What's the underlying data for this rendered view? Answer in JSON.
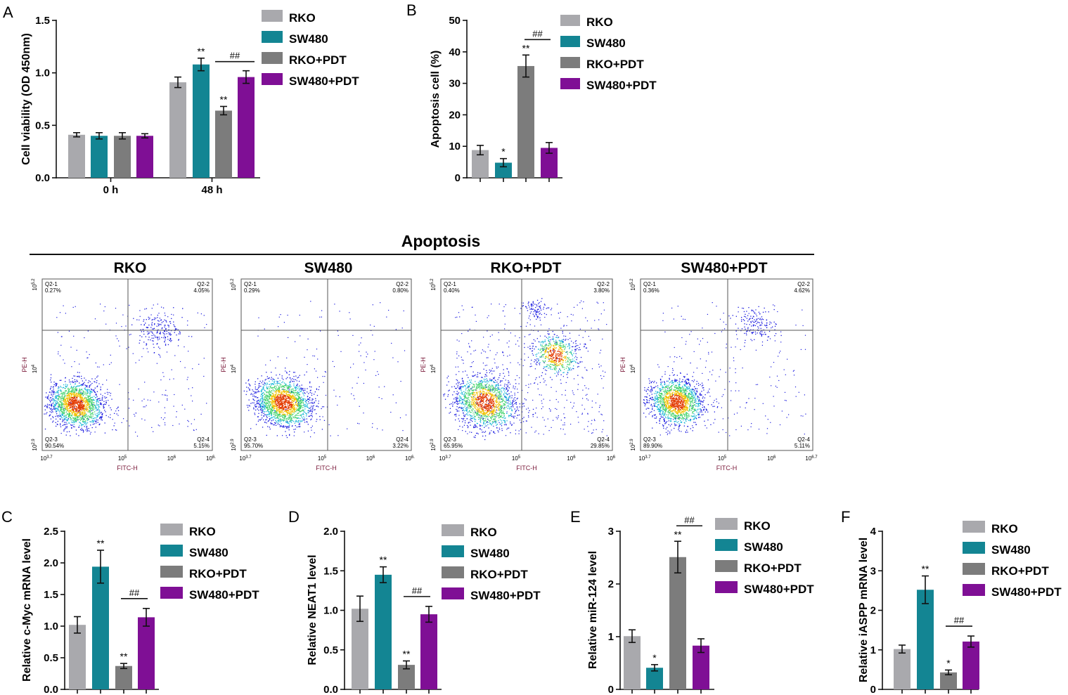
{
  "colors": {
    "RKO": "#a9a9ad",
    "SW480": "#138593",
    "RKO+PDT": "#7c7c7c",
    "SW480+PDT": "#7f0f95",
    "dots": "#1a1adf"
  },
  "legend": [
    "RKO",
    "SW480",
    "RKO+PDT",
    "SW480+PDT"
  ],
  "panel_labels": {
    "A": "A",
    "B": "B",
    "C": "C",
    "D": "D",
    "E": "E",
    "F": "F"
  },
  "flow": {
    "title": "Apoptosis",
    "x_label": "FITC-H",
    "y_label": "PE-H",
    "x_ticks": [
      "10^3.7",
      "10^5",
      "10^6",
      "10^6."
    ],
    "x_ticks_last": [
      "10^6.",
      "10^6.",
      "10^6",
      "10^6.7"
    ],
    "y_ticks": [
      "10^2.9",
      "10^4",
      "10^5.2"
    ],
    "panels": [
      {
        "name": "RKO",
        "q1": "Q2-1",
        "q1v": "0.27%",
        "q2": "Q2-2",
        "q2v": "4.05%",
        "q3": "Q2-3",
        "q3v": "90.54%",
        "q4": "Q2-4",
        "q4v": "5.15%"
      },
      {
        "name": "SW480",
        "q1": "Q2-1",
        "q1v": "0.29%",
        "q2": "Q2-2",
        "q2v": "0.80%",
        "q3": "Q2-3",
        "q3v": "95.70%",
        "q4": "Q2-4",
        "q4v": "3.22%"
      },
      {
        "name": "RKO+PDT",
        "q1": "Q2-1",
        "q1v": "0.40%",
        "q2": "Q2-2",
        "q2v": "3.80%",
        "q3": "Q2-3",
        "q3v": "65.95%",
        "q4": "Q2-4",
        "q4v": "29.85%"
      },
      {
        "name": "SW480+PDT",
        "q1": "Q2-1",
        "q1v": "0.36%",
        "q2": "Q2-2",
        "q2v": "4.62%",
        "q3": "Q2-3",
        "q3v": "89.90%",
        "q4": "Q2-4",
        "q4v": "5.11%"
      }
    ]
  },
  "chart_data": [
    {
      "panel": "A",
      "type": "bar",
      "ylabel": "Cell viability (OD 450nm)",
      "ylim": [
        0,
        1.5
      ],
      "yticks": [
        "0.0",
        "0.5",
        "1.0",
        "1.5"
      ],
      "categories": [
        "0 h",
        "48 h"
      ],
      "series": [
        {
          "name": "RKO",
          "values": [
            0.41,
            0.91
          ],
          "errors": [
            0.02,
            0.05
          ],
          "marks": [
            "",
            ""
          ]
        },
        {
          "name": "SW480",
          "values": [
            0.4,
            1.08
          ],
          "errors": [
            0.03,
            0.06
          ],
          "marks": [
            "",
            "**"
          ]
        },
        {
          "name": "RKO+PDT",
          "values": [
            0.4,
            0.64
          ],
          "errors": [
            0.03,
            0.04
          ],
          "marks": [
            "",
            "**"
          ]
        },
        {
          "name": "SW480+PDT",
          "values": [
            0.4,
            0.96
          ],
          "errors": [
            0.02,
            0.06
          ],
          "marks": [
            "",
            ""
          ]
        }
      ],
      "significance": [
        {
          "category": 1,
          "from": 2,
          "to": 3,
          "label": "##"
        }
      ]
    },
    {
      "panel": "B",
      "type": "bar",
      "ylabel": "Apoptosis cell (%)",
      "ylim": [
        0,
        50
      ],
      "yticks": [
        "0",
        "10",
        "20",
        "30",
        "40",
        "50"
      ],
      "categories": [
        "RKO",
        "SW480",
        "RKO+PDT",
        "SW480+PDT"
      ],
      "values": [
        8.8,
        4.8,
        35.5,
        9.5
      ],
      "errors": [
        1.5,
        1.3,
        3.5,
        1.7
      ],
      "marks": [
        "",
        "*",
        "**",
        ""
      ],
      "significance": [
        {
          "from": 2,
          "to": 3,
          "label": "##"
        }
      ]
    },
    {
      "panel": "C",
      "type": "bar",
      "ylabel": "Relative c-Myc mRNA level",
      "ylim": [
        0,
        2.5
      ],
      "yticks": [
        "0.0",
        "0.5",
        "1.0",
        "1.5",
        "2.0",
        "2.5"
      ],
      "categories": [
        "RKO",
        "SW480",
        "RKO+PDT",
        "SW480+PDT"
      ],
      "values": [
        1.02,
        1.94,
        0.37,
        1.14
      ],
      "errors": [
        0.13,
        0.26,
        0.04,
        0.14
      ],
      "marks": [
        "",
        "**",
        "**",
        ""
      ],
      "significance": [
        {
          "from": 2,
          "to": 3,
          "label": "##"
        }
      ]
    },
    {
      "panel": "D",
      "type": "bar",
      "ylabel": "Relative NEAT1 level",
      "ylim": [
        0,
        2.0
      ],
      "yticks": [
        "0.0",
        "0.5",
        "1.0",
        "1.5",
        "2.0"
      ],
      "categories": [
        "RKO",
        "SW480",
        "RKO+PDT",
        "SW480+PDT"
      ],
      "values": [
        1.02,
        1.45,
        0.31,
        0.95
      ],
      "errors": [
        0.16,
        0.1,
        0.05,
        0.1
      ],
      "marks": [
        "",
        "**",
        "**",
        ""
      ],
      "significance": [
        {
          "from": 2,
          "to": 3,
          "label": "##"
        }
      ]
    },
    {
      "panel": "E",
      "type": "bar",
      "ylabel": "Relative miR-124 level",
      "ylim": [
        0,
        3
      ],
      "yticks": [
        "0",
        "1",
        "2",
        "3"
      ],
      "categories": [
        "RKO",
        "SW480",
        "RKO+PDT",
        "SW480+PDT"
      ],
      "values": [
        1.01,
        0.41,
        2.51,
        0.83
      ],
      "errors": [
        0.12,
        0.06,
        0.3,
        0.13
      ],
      "marks": [
        "",
        "*",
        "**",
        ""
      ],
      "significance": [
        {
          "from": 2,
          "to": 3,
          "label": "##"
        }
      ]
    },
    {
      "panel": "F",
      "type": "bar",
      "ylabel": "Relative iASPP mRNA level",
      "ylim": [
        0,
        4
      ],
      "yticks": [
        "0",
        "1",
        "2",
        "3",
        "4"
      ],
      "categories": [
        "RKO",
        "SW480",
        "RKO+PDT",
        "SW480+PDT"
      ],
      "values": [
        1.02,
        2.52,
        0.43,
        1.21
      ],
      "errors": [
        0.1,
        0.35,
        0.06,
        0.14
      ],
      "marks": [
        "",
        "**",
        "*",
        ""
      ],
      "significance": [
        {
          "from": 2,
          "to": 3,
          "label": "##"
        }
      ]
    }
  ]
}
